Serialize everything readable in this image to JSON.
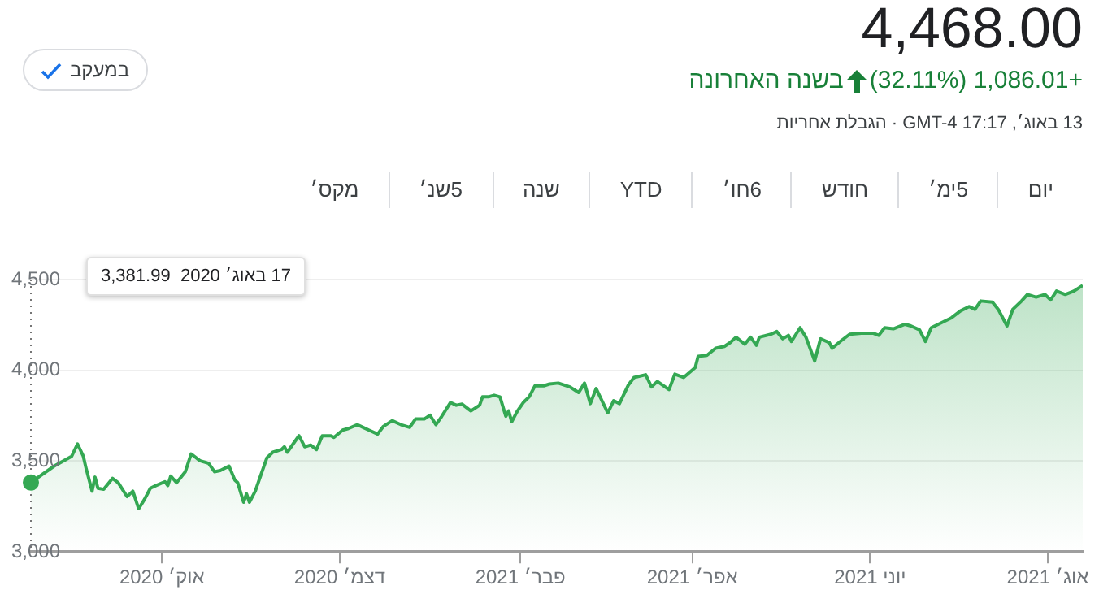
{
  "chart_data": {
    "type": "area",
    "title": "4,468.00",
    "subtitle": "+1,086.01 (32.11%)",
    "annotations": [
      "בשנה האחרונה",
      "13 באוג׳, 17:17 GMT-4 · הגבלת אחריות",
      "במעקב",
      "17 באוג׳ 2020  3,381.99",
      "יום",
      "5ימ׳",
      "חודש",
      "6חו׳",
      "YTD",
      "שנה",
      "5שנ׳",
      "מקס׳"
    ],
    "x": [
      "2020-08-17",
      "2020-08-19",
      "2020-08-25",
      "2020-08-29",
      "2020-08-31",
      "2020-09-02",
      "2020-09-04",
      "2020-09-05",
      "2020-09-07",
      "2020-09-08",
      "2020-09-09",
      "2020-09-11",
      "2020-09-14",
      "2020-09-16",
      "2020-09-19",
      "2020-09-21",
      "2020-09-23",
      "2020-09-25",
      "2020-09-27",
      "2020-09-29",
      "2020-10-02",
      "2020-10-03",
      "2020-10-04",
      "2020-10-06",
      "2020-10-09",
      "2020-10-11",
      "2020-10-14",
      "2020-10-17",
      "2020-10-19",
      "2020-10-21",
      "2020-10-24",
      "2020-10-26",
      "2020-10-27",
      "2020-10-29",
      "2020-10-30",
      "2020-10-31",
      "2020-11-02",
      "2020-11-04",
      "2020-11-06",
      "2020-11-08",
      "2020-11-11",
      "2020-11-12",
      "2020-11-13",
      "2020-11-15",
      "2020-11-17",
      "2020-11-19",
      "2020-11-21",
      "2020-11-23",
      "2020-11-25",
      "2020-11-28",
      "2020-11-29",
      "2020-12-02",
      "2020-12-04",
      "2020-12-07",
      "2020-12-09",
      "2020-12-11",
      "2020-12-14",
      "2020-12-16",
      "2020-12-19",
      "2020-12-22",
      "2020-12-25",
      "2020-12-27",
      "2020-12-30",
      "2021-01-01",
      "2021-01-03",
      "2021-01-05",
      "2021-01-08",
      "2021-01-10",
      "2021-01-12",
      "2021-01-15",
      "2021-01-18",
      "2021-01-19",
      "2021-01-21",
      "2021-01-23",
      "2021-01-25",
      "2021-01-27",
      "2021-01-28",
      "2021-01-29",
      "2021-01-31",
      "2021-02-02",
      "2021-02-04",
      "2021-02-06",
      "2021-02-09",
      "2021-02-11",
      "2021-02-14",
      "2021-02-18",
      "2021-02-21",
      "2021-02-23",
      "2021-02-25",
      "2021-02-27",
      "2021-03-03",
      "2021-03-05",
      "2021-03-07",
      "2021-03-10",
      "2021-03-12",
      "2021-03-16",
      "2021-03-18",
      "2021-03-20",
      "2021-03-24",
      "2021-03-26",
      "2021-03-29",
      "2021-04-02",
      "2021-04-03",
      "2021-04-06",
      "2021-04-09",
      "2021-04-12",
      "2021-04-14",
      "2021-04-16",
      "2021-04-19",
      "2021-04-21",
      "2021-04-23",
      "2021-04-24",
      "2021-04-28",
      "2021-04-30",
      "2021-05-02",
      "2021-05-04",
      "2021-05-05",
      "2021-05-08",
      "2021-05-10",
      "2021-05-13",
      "2021-05-15",
      "2021-05-18",
      "2021-05-19",
      "2021-05-22",
      "2021-05-25",
      "2021-05-29",
      "2021-06-02",
      "2021-06-04",
      "2021-06-06",
      "2021-06-09",
      "2021-06-13",
      "2021-06-15",
      "2021-06-18",
      "2021-06-20",
      "2021-06-22",
      "2021-06-26",
      "2021-06-29",
      "2021-07-02",
      "2021-07-05",
      "2021-07-07",
      "2021-07-09",
      "2021-07-13",
      "2021-07-15",
      "2021-07-18",
      "2021-07-20",
      "2021-07-23",
      "2021-07-25",
      "2021-07-28",
      "2021-07-31",
      "2021-08-02",
      "2021-08-04",
      "2021-08-07",
      "2021-08-10",
      "2021-08-13"
    ],
    "series": [
      {
        "color": "#34a853",
        "values": [
          3382,
          3405,
          3473,
          3509,
          3527,
          3595,
          3527,
          3457,
          3335,
          3412,
          3351,
          3345,
          3405,
          3381,
          3305,
          3335,
          3238,
          3290,
          3351,
          3366,
          3387,
          3366,
          3418,
          3381,
          3442,
          3540,
          3503,
          3488,
          3442,
          3448,
          3473,
          3396,
          3381,
          3274,
          3320,
          3274,
          3335,
          3427,
          3518,
          3549,
          3564,
          3579,
          3549,
          3595,
          3640,
          3579,
          3589,
          3564,
          3640,
          3640,
          3631,
          3671,
          3680,
          3701,
          3686,
          3671,
          3649,
          3692,
          3723,
          3701,
          3686,
          3732,
          3732,
          3753,
          3701,
          3747,
          3823,
          3808,
          3814,
          3777,
          3808,
          3854,
          3854,
          3863,
          3854,
          3747,
          3777,
          3717,
          3777,
          3823,
          3854,
          3915,
          3915,
          3925,
          3930,
          3909,
          3878,
          3930,
          3817,
          3900,
          3766,
          3833,
          3817,
          3918,
          3961,
          3976,
          3909,
          3939,
          3894,
          3979,
          3961,
          4016,
          4077,
          4083,
          4122,
          4132,
          4153,
          4183,
          4144,
          4183,
          4138,
          4183,
          4199,
          4214,
          4174,
          4193,
          4159,
          4235,
          4183,
          4052,
          4174,
          4153,
          4122,
          4162,
          4199,
          4205,
          4205,
          4193,
          4235,
          4229,
          4254,
          4245,
          4223,
          4159,
          4235,
          4266,
          4290,
          4327,
          4351,
          4336,
          4382,
          4376,
          4336,
          4245,
          4336,
          4382,
          4418,
          4403,
          4418,
          4388,
          4437,
          4418,
          4437,
          4468
        ]
      }
    ],
    "xlim": [
      "2020-08-17",
      "2021-08-13"
    ],
    "xticks": [
      {
        "value": "2020-10-01",
        "label": "אוק׳ 2020"
      },
      {
        "value": "2020-12-01",
        "label": "דצמ׳ 2020"
      },
      {
        "value": "2021-02-01",
        "label": "פבר׳ 2021"
      },
      {
        "value": "2021-04-01",
        "label": "אפר׳ 2021"
      },
      {
        "value": "2021-06-01",
        "label": "יוני 2021"
      },
      {
        "value": "2021-08-01",
        "label": "אוג׳ 2021"
      }
    ],
    "ylim": [
      3000,
      4500
    ],
    "yticks": [
      {
        "value": 3000,
        "label": "3,000"
      },
      {
        "value": 3500,
        "label": "3,500"
      },
      {
        "value": 4000,
        "label": "4,000"
      },
      {
        "value": 4500,
        "label": "4,500"
      }
    ],
    "ref_lines": [
      {
        "axis": "x",
        "value": "2020-08-17",
        "color": "#757575",
        "line_style": "dotted"
      }
    ],
    "grid": "y",
    "legend": false,
    "marker": "none",
    "line_style": "solid"
  }
}
